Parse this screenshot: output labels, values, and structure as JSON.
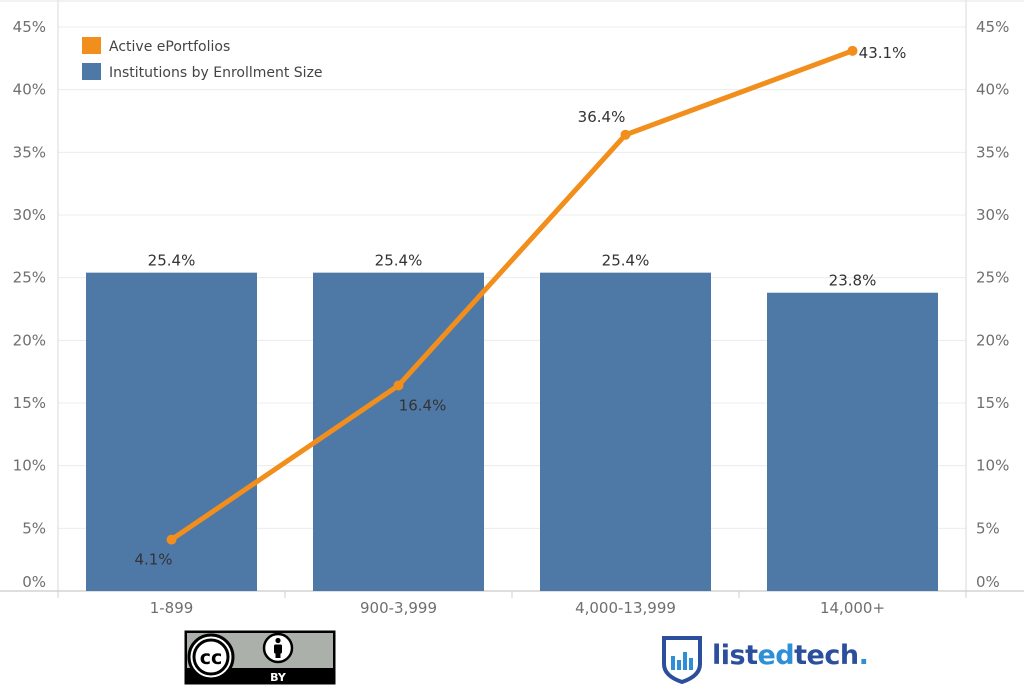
{
  "chart_data": {
    "type": "bar+line",
    "categories": [
      "1-899",
      "900-3,999",
      "4,000-13,999",
      "14,000+"
    ],
    "series": [
      {
        "name": "Institutions by Enrollment Size",
        "type": "bar",
        "color": "#4e79a7",
        "values": [
          25.4,
          25.4,
          25.4,
          23.8
        ],
        "labels": [
          "25.4%",
          "25.4%",
          "25.4%",
          "23.8%"
        ]
      },
      {
        "name": "Active ePortfolios",
        "type": "line",
        "color": "#f28e1c",
        "values": [
          4.1,
          16.4,
          36.4,
          43.1
        ],
        "labels": [
          "4.1%",
          "16.4%",
          "36.4%",
          "43.1%"
        ]
      }
    ],
    "ylim": [
      0,
      45
    ],
    "yticks": [
      0,
      5,
      10,
      15,
      20,
      25,
      30,
      35,
      40,
      45
    ],
    "ytick_labels": [
      "0%",
      "5%",
      "10%",
      "15%",
      "20%",
      "25%",
      "30%",
      "35%",
      "40%",
      "45%"
    ],
    "dual_axis": true,
    "grid": true,
    "legend": "top-left"
  },
  "branding": {
    "license_badge": "BY",
    "logo_text_parts": [
      "list",
      "ed",
      "tech",
      "."
    ],
    "logo_icon": "shield-bar-chart-icon",
    "license_icon": "creative-commons-icon",
    "attribution_icon": "person-icon"
  }
}
